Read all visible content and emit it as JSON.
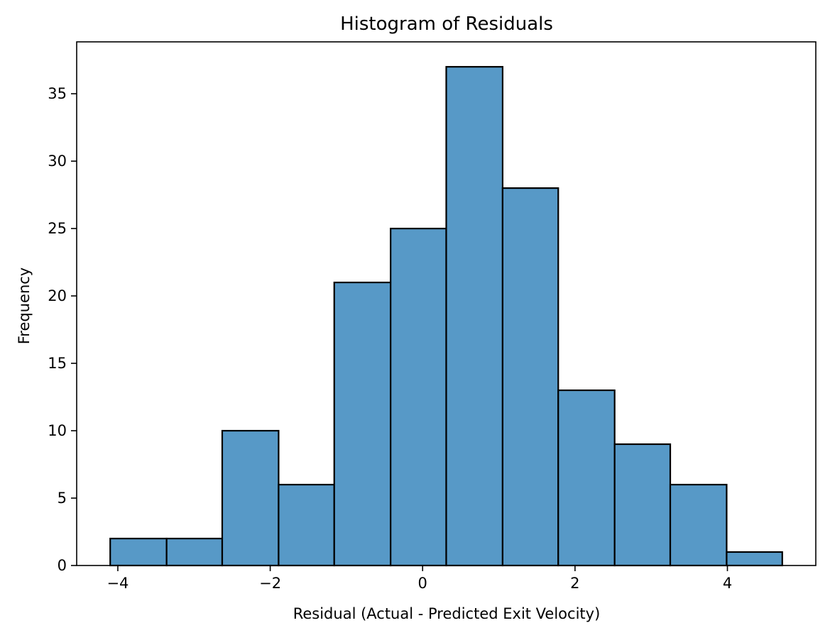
{
  "chart_data": {
    "type": "bar",
    "title": "Histogram of Residuals",
    "xlabel": "Residual (Actual - Predicted Exit Velocity)",
    "ylabel": "Frequency",
    "bin_edges": [
      -4.1,
      -3.36,
      -2.63,
      -1.89,
      -1.16,
      -0.42,
      0.31,
      1.05,
      1.78,
      2.52,
      3.25,
      3.99,
      4.72
    ],
    "values": [
      2,
      2,
      10,
      6,
      21,
      25,
      37,
      28,
      13,
      9,
      6,
      1
    ],
    "xlim": [
      -4.54,
      5.16
    ],
    "ylim": [
      0,
      38.85
    ],
    "xticks": [
      -4,
      -2,
      0,
      2,
      4
    ],
    "xtick_labels": [
      "−4",
      "−2",
      "0",
      "2",
      "4"
    ],
    "yticks": [
      0,
      5,
      10,
      15,
      20,
      25,
      30,
      35
    ],
    "ytick_labels": [
      "0",
      "5",
      "10",
      "15",
      "20",
      "25",
      "30",
      "35"
    ],
    "bar_color": "#5799c7",
    "edge_color": "#000000",
    "grid": false,
    "legend": "none"
  }
}
